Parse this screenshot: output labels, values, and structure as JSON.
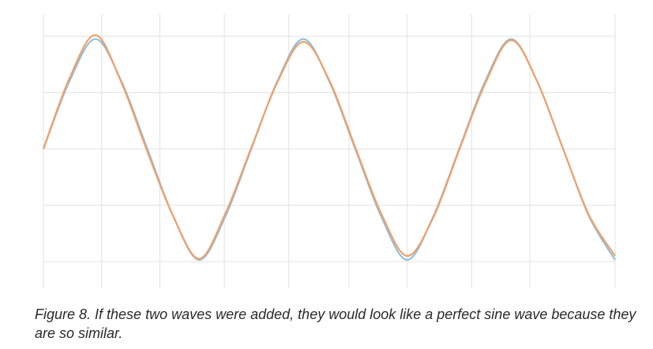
{
  "chart_data": {
    "type": "line",
    "title": "",
    "xlabel": "",
    "ylabel": "",
    "x_range": [
      0,
      2.75
    ],
    "ylim": [
      -2,
      2
    ],
    "grid": true,
    "x_gridlines": [
      0,
      0.28,
      0.56,
      0.87,
      1.18,
      1.47,
      1.75,
      2.06,
      2.34,
      2.75
    ],
    "y_gridlines": [
      -2,
      -1,
      0,
      1,
      2
    ],
    "series": [
      {
        "color": "#8fbfde",
        "x": [
          0,
          0.125,
          0.25,
          0.375,
          0.5,
          0.625,
          0.75,
          0.875,
          1,
          1.125,
          1.25,
          1.375,
          1.5,
          1.625,
          1.75,
          1.875,
          2,
          2.125,
          2.25,
          2.375,
          2.5,
          2.625,
          2.75
        ],
        "values": [
          0,
          1.2,
          1.95,
          1.2,
          0,
          -1.2,
          -1.97,
          -1.2,
          0,
          1.2,
          1.95,
          1.2,
          0,
          -1.2,
          -1.97,
          -1.2,
          0,
          1.2,
          1.95,
          1.2,
          0,
          -1.2,
          -1.97
        ]
      },
      {
        "color": "#f0a06a",
        "x": [
          0,
          0.125,
          0.25,
          0.375,
          0.5,
          0.625,
          0.75,
          0.875,
          1,
          1.125,
          1.25,
          1.375,
          1.5,
          1.625,
          1.75,
          1.875,
          2,
          2.125,
          2.25,
          2.375,
          2.5,
          2.625,
          2.75
        ],
        "values": [
          0,
          1.25,
          2.02,
          1.18,
          -0.05,
          -1.2,
          -1.95,
          -1.15,
          0.02,
          1.18,
          1.9,
          1.22,
          0.03,
          -1.15,
          -1.9,
          -1.22,
          -0.02,
          1.16,
          1.93,
          1.2,
          0,
          -1.18,
          -1.9
        ]
      }
    ]
  },
  "caption": "Figure 8. If these two waves were added, they would look like a perfect sine wave because they are so similar."
}
